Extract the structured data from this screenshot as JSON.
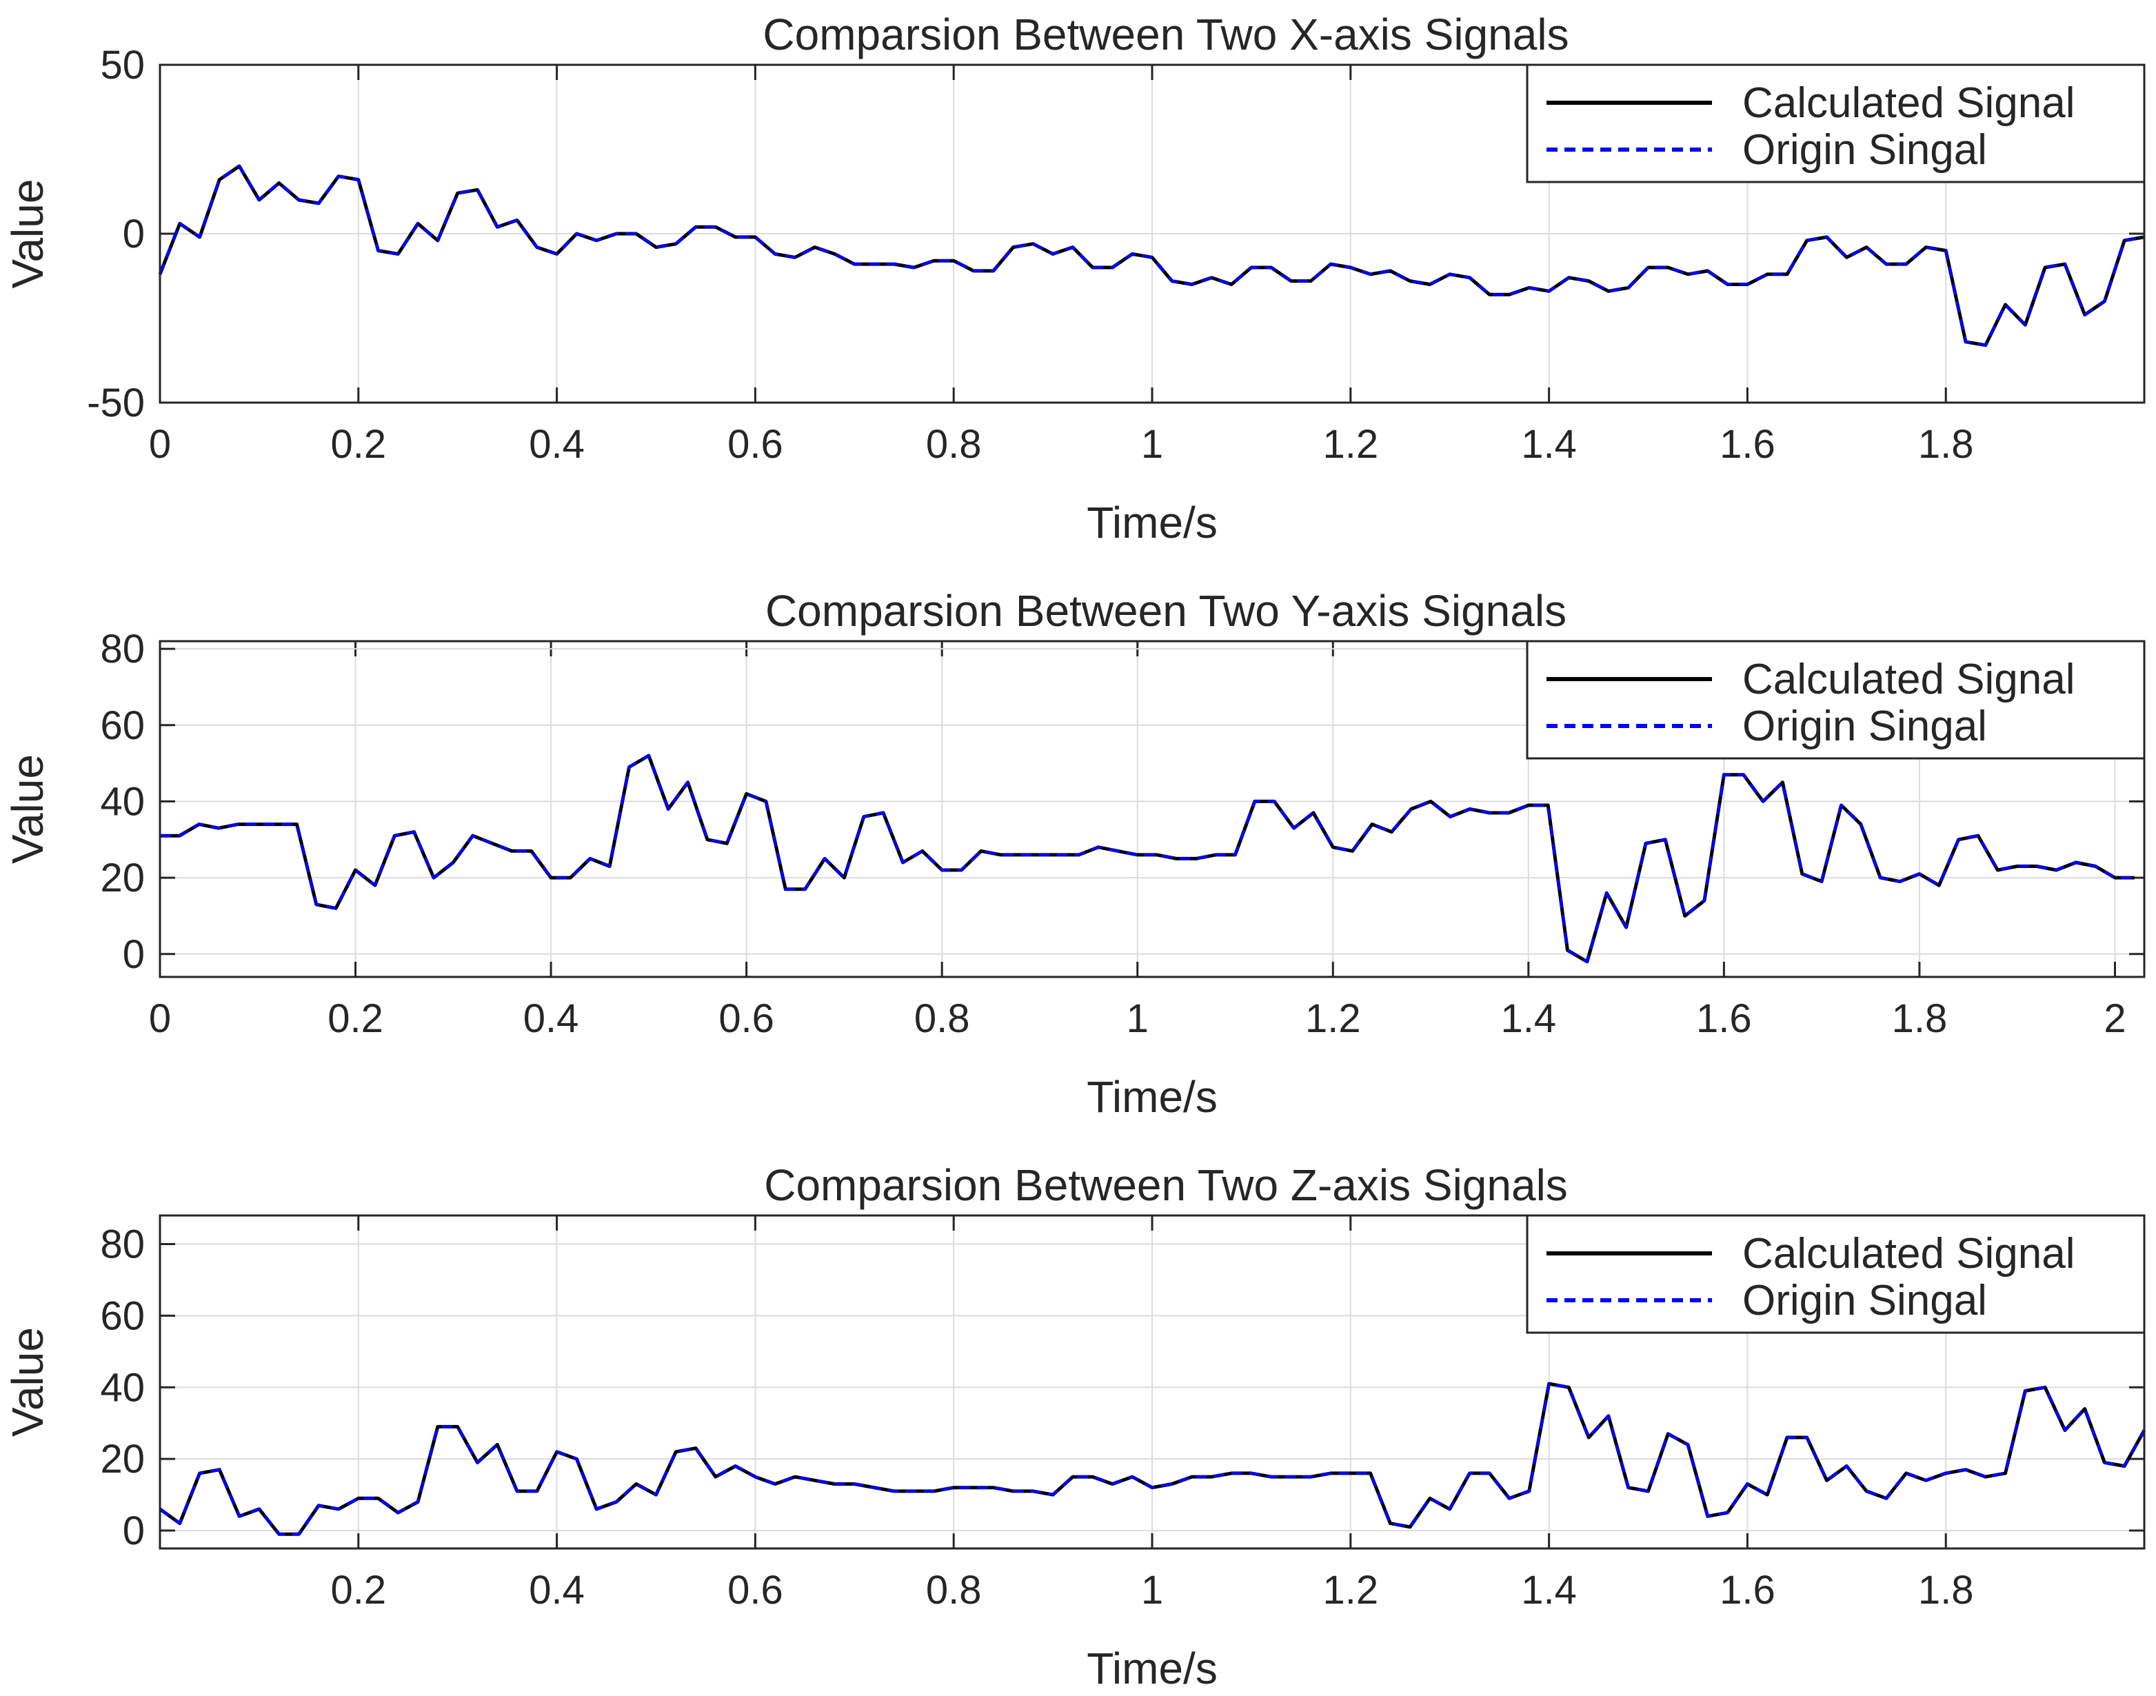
{
  "chart_data": [
    {
      "type": "line",
      "title": "Comparsion Between Two X-axis Signals",
      "xlabel": "Time/s",
      "ylabel": "Value",
      "xlim": [
        0,
        2.0
      ],
      "ylim": [
        -50,
        50
      ],
      "xticks": [
        "0",
        "0.2",
        "0.4",
        "0.6",
        "0.8",
        "1",
        "1.2",
        "1.4",
        "1.6",
        "1.8"
      ],
      "yticks": [
        "-50",
        "0",
        "50"
      ],
      "grid": true,
      "legend": {
        "position": "top-right",
        "entries": [
          "Calculated Signal",
          "Origin Singal"
        ]
      },
      "x": [
        0,
        0.02,
        0.04,
        0.06,
        0.08,
        0.1,
        0.12,
        0.14,
        0.16,
        0.18,
        0.2,
        0.22,
        0.24,
        0.26,
        0.28,
        0.3,
        0.32,
        0.34,
        0.36,
        0.38,
        0.4,
        0.42,
        0.44,
        0.46,
        0.48,
        0.5,
        0.52,
        0.54,
        0.56,
        0.58,
        0.6,
        0.62,
        0.64,
        0.66,
        0.68,
        0.7,
        0.72,
        0.74,
        0.76,
        0.78,
        0.8,
        0.82,
        0.84,
        0.86,
        0.88,
        0.9,
        0.92,
        0.94,
        0.96,
        0.98,
        1.0,
        1.02,
        1.04,
        1.06,
        1.08,
        1.1,
        1.12,
        1.14,
        1.16,
        1.18,
        1.2,
        1.22,
        1.24,
        1.26,
        1.28,
        1.3,
        1.32,
        1.34,
        1.36,
        1.38,
        1.4,
        1.42,
        1.44,
        1.46,
        1.48,
        1.5,
        1.52,
        1.54,
        1.56,
        1.58,
        1.6,
        1.62,
        1.64,
        1.66,
        1.68,
        1.7,
        1.72,
        1.74,
        1.76,
        1.78,
        1.8,
        1.82,
        1.84,
        1.86,
        1.88,
        1.9,
        1.92,
        1.94,
        1.96,
        1.98,
        2.0
      ],
      "series": [
        {
          "name": "Calculated Signal",
          "values": [
            -12,
            3,
            -1,
            16,
            20,
            10,
            15,
            10,
            9,
            17,
            16,
            -5,
            -6,
            3,
            -2,
            12,
            13,
            2,
            4,
            -4,
            -6,
            0,
            -2,
            0,
            0,
            -4,
            -3,
            2,
            2,
            -1,
            -1,
            -6,
            -7,
            -4,
            -6,
            -9,
            -9,
            -9,
            -10,
            -8,
            -8,
            -11,
            -11,
            -4,
            -3,
            -6,
            -4,
            -10,
            -10,
            -6,
            -7,
            -14,
            -15,
            -13,
            -15,
            -10,
            -10,
            -14,
            -14,
            -9,
            -10,
            -12,
            -11,
            -14,
            -15,
            -12,
            -13,
            -18,
            -18,
            -16,
            -17,
            -13,
            -14,
            -17,
            -16,
            -10,
            -10,
            -12,
            -11,
            -15,
            -15,
            -12,
            -12,
            -2,
            -1,
            -7,
            -4,
            -9,
            -9,
            -4,
            -5,
            -32,
            -33,
            -21,
            -27,
            -10,
            -9,
            -24,
            -20,
            -2,
            -1
          ]
        },
        {
          "name": "Origin Singal",
          "values": [
            -12,
            3,
            -1,
            16,
            20,
            10,
            15,
            10,
            9,
            17,
            16,
            -5,
            -6,
            3,
            -2,
            12,
            13,
            2,
            4,
            -4,
            -6,
            0,
            -2,
            0,
            0,
            -4,
            -3,
            2,
            2,
            -1,
            -1,
            -6,
            -7,
            -4,
            -6,
            -9,
            -9,
            -9,
            -10,
            -8,
            -8,
            -11,
            -11,
            -4,
            -3,
            -6,
            -4,
            -10,
            -10,
            -6,
            -7,
            -14,
            -15,
            -13,
            -15,
            -10,
            -10,
            -14,
            -14,
            -9,
            -10,
            -12,
            -11,
            -14,
            -15,
            -12,
            -13,
            -18,
            -18,
            -16,
            -17,
            -13,
            -14,
            -17,
            -16,
            -10,
            -10,
            -12,
            -11,
            -15,
            -15,
            -12,
            -12,
            -2,
            -1,
            -7,
            -4,
            -9,
            -9,
            -4,
            -5,
            -32,
            -33,
            -21,
            -27,
            -10,
            -9,
            -24,
            -20,
            -2,
            -1
          ]
        }
      ]
    },
    {
      "type": "line",
      "title": "Comparsion Between Two Y-axis Signals",
      "xlabel": "Time/s",
      "ylabel": "Value",
      "xlim": [
        0,
        2.03
      ],
      "ylim": [
        -6,
        82
      ],
      "xticks": [
        "0",
        "0.2",
        "0.4",
        "0.6",
        "0.8",
        "1",
        "1.2",
        "1.4",
        "1.6",
        "1.8",
        "2"
      ],
      "yticks": [
        "0",
        "20",
        "40",
        "60",
        "80"
      ],
      "grid": true,
      "legend": {
        "position": "top-right",
        "entries": [
          "Calculated Signal",
          "Origin Singal"
        ]
      },
      "x": [
        0,
        0.02,
        0.04,
        0.06,
        0.08,
        0.1,
        0.12,
        0.14,
        0.16,
        0.18,
        0.2,
        0.22,
        0.24,
        0.26,
        0.28,
        0.3,
        0.32,
        0.34,
        0.36,
        0.38,
        0.4,
        0.42,
        0.44,
        0.46,
        0.48,
        0.5,
        0.52,
        0.54,
        0.56,
        0.58,
        0.6,
        0.62,
        0.64,
        0.66,
        0.68,
        0.7,
        0.72,
        0.74,
        0.76,
        0.78,
        0.8,
        0.82,
        0.84,
        0.86,
        0.88,
        0.9,
        0.92,
        0.94,
        0.96,
        0.98,
        1.0,
        1.02,
        1.04,
        1.06,
        1.08,
        1.1,
        1.12,
        1.14,
        1.16,
        1.18,
        1.2,
        1.22,
        1.24,
        1.26,
        1.28,
        1.3,
        1.32,
        1.34,
        1.36,
        1.38,
        1.4,
        1.42,
        1.44,
        1.46,
        1.48,
        1.5,
        1.52,
        1.54,
        1.56,
        1.58,
        1.6,
        1.62,
        1.64,
        1.66,
        1.68,
        1.7,
        1.72,
        1.74,
        1.76,
        1.78,
        1.8,
        1.82,
        1.84,
        1.86,
        1.88,
        1.9,
        1.92,
        1.94,
        1.96,
        1.98,
        2.0,
        2.02
      ],
      "series": [
        {
          "name": "Calculated Signal",
          "values": [
            31,
            31,
            34,
            33,
            34,
            34,
            34,
            34,
            13,
            12,
            22,
            18,
            31,
            32,
            20,
            24,
            31,
            29,
            27,
            27,
            20,
            20,
            25,
            23,
            49,
            52,
            38,
            45,
            30,
            29,
            42,
            40,
            17,
            17,
            25,
            20,
            36,
            37,
            24,
            27,
            22,
            22,
            27,
            26,
            26,
            26,
            26,
            26,
            28,
            27,
            26,
            26,
            25,
            25,
            26,
            26,
            40,
            40,
            33,
            37,
            28,
            27,
            34,
            32,
            38,
            40,
            36,
            38,
            37,
            37,
            39,
            39,
            1,
            -2,
            16,
            7,
            29,
            30,
            10,
            14,
            47,
            47,
            40,
            45,
            21,
            19,
            39,
            34,
            20,
            19,
            21,
            18,
            30,
            31,
            22,
            23,
            23,
            22,
            24,
            23,
            20,
            20
          ]
        },
        {
          "name": "Origin Singal",
          "values": [
            31,
            31,
            34,
            33,
            34,
            34,
            34,
            34,
            13,
            12,
            22,
            18,
            31,
            32,
            20,
            24,
            31,
            29,
            27,
            27,
            20,
            20,
            25,
            23,
            49,
            52,
            38,
            45,
            30,
            29,
            42,
            40,
            17,
            17,
            25,
            20,
            36,
            37,
            24,
            27,
            22,
            22,
            27,
            26,
            26,
            26,
            26,
            26,
            28,
            27,
            26,
            26,
            25,
            25,
            26,
            26,
            40,
            40,
            33,
            37,
            28,
            27,
            34,
            32,
            38,
            40,
            36,
            38,
            37,
            37,
            39,
            39,
            1,
            -2,
            16,
            7,
            29,
            30,
            10,
            14,
            47,
            47,
            40,
            45,
            21,
            19,
            39,
            34,
            20,
            19,
            21,
            18,
            30,
            31,
            22,
            23,
            23,
            22,
            24,
            23,
            20,
            20
          ]
        }
      ]
    },
    {
      "type": "line",
      "title": "Comparsion Between Two Z-axis Signals",
      "xlabel": "Time/s",
      "ylabel": "Value",
      "xlim": [
        0,
        2.0
      ],
      "ylim": [
        -5,
        88
      ],
      "xticks": [
        "0.2",
        "0.4",
        "0.6",
        "0.8",
        "1",
        "1.2",
        "1.4",
        "1.6",
        "1.8"
      ],
      "yticks": [
        "0",
        "20",
        "40",
        "60",
        "80"
      ],
      "grid": true,
      "legend": {
        "position": "top-right",
        "entries": [
          "Calculated Signal",
          "Origin Singal"
        ]
      },
      "x": [
        0,
        0.02,
        0.04,
        0.06,
        0.08,
        0.1,
        0.12,
        0.14,
        0.16,
        0.18,
        0.2,
        0.22,
        0.24,
        0.26,
        0.28,
        0.3,
        0.32,
        0.34,
        0.36,
        0.38,
        0.4,
        0.42,
        0.44,
        0.46,
        0.48,
        0.5,
        0.52,
        0.54,
        0.56,
        0.58,
        0.6,
        0.62,
        0.64,
        0.66,
        0.68,
        0.7,
        0.72,
        0.74,
        0.76,
        0.78,
        0.8,
        0.82,
        0.84,
        0.86,
        0.88,
        0.9,
        0.92,
        0.94,
        0.96,
        0.98,
        1.0,
        1.02,
        1.04,
        1.06,
        1.08,
        1.1,
        1.12,
        1.14,
        1.16,
        1.18,
        1.2,
        1.22,
        1.24,
        1.26,
        1.28,
        1.3,
        1.32,
        1.34,
        1.36,
        1.38,
        1.4,
        1.42,
        1.44,
        1.46,
        1.48,
        1.5,
        1.52,
        1.54,
        1.56,
        1.58,
        1.6,
        1.62,
        1.64,
        1.66,
        1.68,
        1.7,
        1.72,
        1.74,
        1.76,
        1.78,
        1.8,
        1.82,
        1.84,
        1.86,
        1.88,
        1.9,
        1.92,
        1.94,
        1.96,
        1.98,
        2.0
      ],
      "series": [
        {
          "name": "Calculated Signal",
          "values": [
            6,
            2,
            16,
            17,
            4,
            6,
            -1,
            -1,
            7,
            6,
            9,
            9,
            5,
            8,
            29,
            29,
            19,
            24,
            11,
            11,
            22,
            20,
            6,
            8,
            13,
            10,
            22,
            23,
            15,
            18,
            15,
            13,
            15,
            14,
            13,
            13,
            12,
            11,
            11,
            11,
            12,
            12,
            12,
            11,
            11,
            10,
            15,
            15,
            13,
            15,
            12,
            13,
            15,
            15,
            16,
            16,
            15,
            15,
            15,
            16,
            16,
            16,
            2,
            1,
            9,
            6,
            16,
            16,
            9,
            11,
            41,
            40,
            26,
            32,
            12,
            11,
            27,
            24,
            4,
            5,
            13,
            10,
            26,
            26,
            14,
            18,
            11,
            9,
            16,
            14,
            16,
            17,
            15,
            16,
            39,
            40,
            28,
            34,
            19,
            18,
            28
          ]
        },
        {
          "name": "Origin Singal",
          "values": [
            6,
            2,
            16,
            17,
            4,
            6,
            -1,
            -1,
            7,
            6,
            9,
            9,
            5,
            8,
            29,
            29,
            19,
            24,
            11,
            11,
            22,
            20,
            6,
            8,
            13,
            10,
            22,
            23,
            15,
            18,
            15,
            13,
            15,
            14,
            13,
            13,
            12,
            11,
            11,
            11,
            12,
            12,
            12,
            11,
            11,
            10,
            15,
            15,
            13,
            15,
            12,
            13,
            15,
            15,
            16,
            16,
            15,
            15,
            15,
            16,
            16,
            16,
            2,
            1,
            9,
            6,
            16,
            16,
            9,
            11,
            41,
            40,
            26,
            32,
            12,
            11,
            27,
            24,
            4,
            5,
            13,
            10,
            26,
            26,
            14,
            18,
            11,
            9,
            16,
            14,
            16,
            17,
            15,
            16,
            39,
            40,
            28,
            34,
            19,
            18,
            28
          ]
        }
      ]
    }
  ],
  "colors": {
    "calculated": "#000000",
    "origin": "#0000ff",
    "grid": "#dcdcdc",
    "axes": "#262626"
  }
}
